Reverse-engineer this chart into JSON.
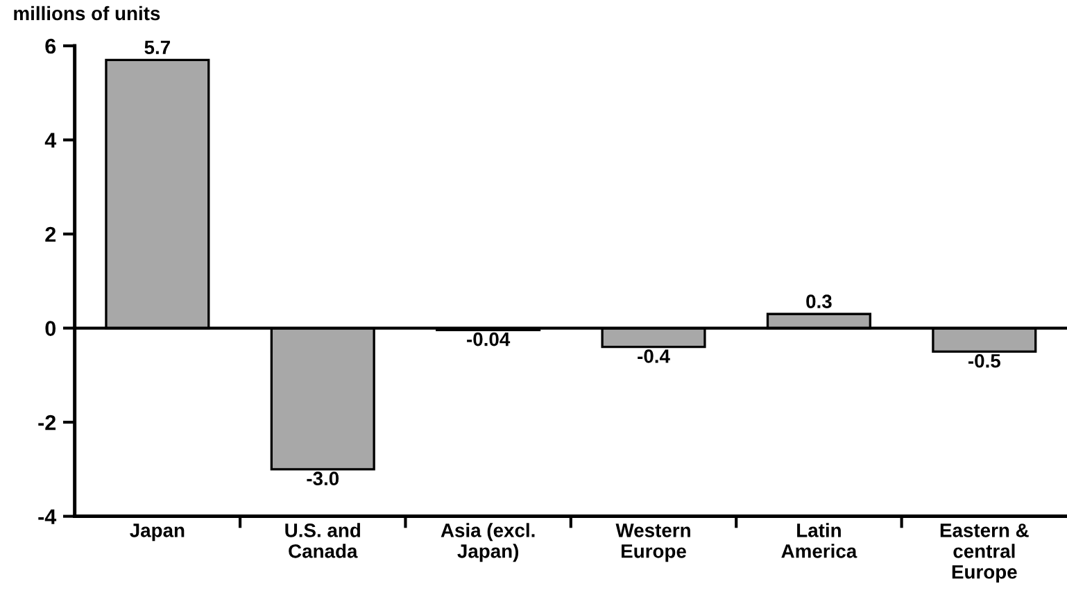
{
  "chart_data": {
    "type": "bar",
    "ylabel": "millions of units",
    "categories": [
      "Japan",
      "U.S. and\nCanada",
      "Asia (excl.\nJapan)",
      "Western\nEurope",
      "Latin\nAmerica",
      "Eastern &\ncentral\nEurope"
    ],
    "values": [
      5.7,
      -3.0,
      -0.04,
      -0.4,
      0.3,
      -0.5
    ],
    "value_labels": [
      "5.7",
      "-3.0",
      "-0.04",
      "-0.4",
      "0.3",
      "-0.5"
    ],
    "color": "#a8a8a8",
    "ylim": [
      -4,
      6
    ],
    "yticks": [
      -4,
      -2,
      0,
      2,
      4,
      6
    ],
    "ref_lines": [
      {
        "axis": "y",
        "value": 0,
        "color": "#000000"
      }
    ],
    "grid": false,
    "legend": false
  }
}
